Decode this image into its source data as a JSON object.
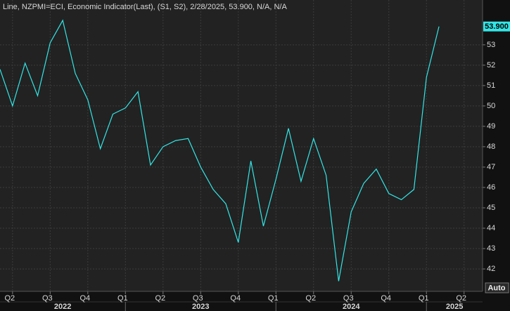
{
  "chart_data": {
    "type": "line",
    "title": "Line, NZPMI=ECI, Economic Indicator(Last), (S1, S2), 2/28/2025, 53.900, N/A, N/A",
    "x": [
      "2022-03",
      "2022-04",
      "2022-05",
      "2022-06",
      "2022-07",
      "2022-08",
      "2022-09",
      "2022-10",
      "2022-11",
      "2022-12",
      "2023-01",
      "2023-02",
      "2023-03",
      "2023-04",
      "2023-05",
      "2023-06",
      "2023-07",
      "2023-08",
      "2023-09",
      "2023-10",
      "2023-11",
      "2023-12",
      "2024-01",
      "2024-02",
      "2024-03",
      "2024-04",
      "2024-05",
      "2024-06",
      "2024-07",
      "2024-08",
      "2024-09",
      "2024-10",
      "2024-11",
      "2024-12",
      "2025-01",
      "2025-02"
    ],
    "series": [
      {
        "name": "NZPMI=ECI",
        "color": "#33e6e6",
        "values": [
          51.8,
          50.0,
          52.1,
          50.5,
          53.1,
          54.2,
          51.6,
          50.3,
          47.9,
          49.6,
          49.9,
          50.7,
          47.1,
          48.0,
          48.3,
          48.4,
          47.0,
          45.9,
          45.2,
          43.3,
          47.3,
          44.1,
          46.4,
          48.9,
          46.3,
          48.4,
          46.6,
          41.4,
          44.8,
          46.2,
          46.9,
          45.7,
          45.4,
          45.9,
          51.4,
          53.9
        ],
        "value_labels": [
          null,
          null,
          null,
          null,
          null,
          null,
          null,
          null,
          null,
          null,
          null,
          null,
          null,
          null,
          null,
          null,
          null,
          null,
          null,
          null,
          null,
          null,
          null,
          null,
          null,
          null,
          null,
          null,
          null,
          null,
          null,
          null,
          null,
          null,
          null,
          "53.900"
        ]
      }
    ],
    "ylim": [
      40.9,
      55.2
    ],
    "yticks": [
      42,
      43,
      44,
      45,
      46,
      47,
      48,
      49,
      50,
      51,
      52,
      53
    ],
    "xticks": [
      {
        "value": "2022-04",
        "label": "Q2"
      },
      {
        "value": "2022-07",
        "label": "Q3"
      },
      {
        "value": "2022-10",
        "label": "Q4"
      },
      {
        "value": "2023-01",
        "label": "Q1"
      },
      {
        "value": "2023-04",
        "label": "Q2"
      },
      {
        "value": "2023-07",
        "label": "Q3"
      },
      {
        "value": "2023-10",
        "label": "Q4"
      },
      {
        "value": "2024-01",
        "label": "Q1"
      },
      {
        "value": "2024-04",
        "label": "Q2"
      },
      {
        "value": "2024-07",
        "label": "Q3"
      },
      {
        "value": "2024-10",
        "label": "Q4"
      },
      {
        "value": "2025-01",
        "label": "Q1"
      },
      {
        "value": "2025-04",
        "label": "Q2"
      }
    ],
    "year_labels": [
      "2022",
      "2023",
      "2024",
      "2025"
    ],
    "grid": true,
    "auto_button": "Auto"
  }
}
